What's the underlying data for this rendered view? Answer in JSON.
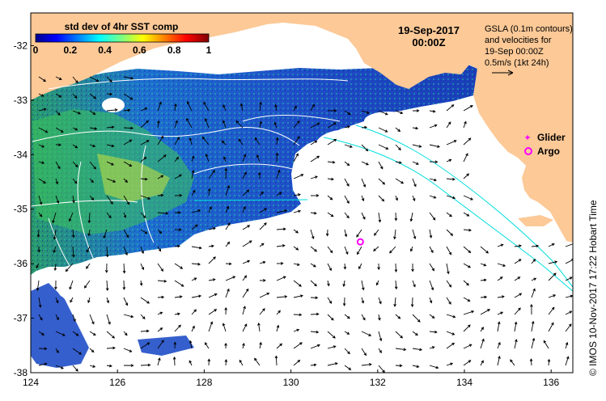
{
  "colorbar": {
    "title": "std dev of 4hr SST comp",
    "ticks": [
      "0",
      "0.2",
      "0.4",
      "0.6",
      "0.8",
      "1"
    ],
    "tick_values": [
      0,
      0.2,
      0.4,
      0.6,
      0.8,
      1
    ]
  },
  "header": {
    "date": "19-Sep-2017",
    "time": "00:00Z"
  },
  "info": {
    "line1": "GSLA (0.1m contours)",
    "line2": "and velocities for",
    "line3": "19-Sep 00:00Z",
    "line4": "0.5m/s (1kt 24h)"
  },
  "legend": {
    "glider": "Glider",
    "argo": "Argo"
  },
  "credit": "© IMOS 10-Nov-2017 17:22 Hobart Time",
  "axes": {
    "lon_ticks": [
      "124",
      "126",
      "128",
      "130",
      "132",
      "134",
      "136"
    ],
    "lon_values": [
      124,
      126,
      128,
      130,
      132,
      134,
      136
    ],
    "lat_ticks": [
      "-32",
      "-33",
      "-34",
      "-35",
      "-36",
      "-37",
      "-38"
    ],
    "lat_values": [
      -32,
      -33,
      -34,
      -35,
      -36,
      -37,
      -38
    ],
    "lon_range": [
      124,
      136.5
    ],
    "lat_range": [
      -38,
      -31.4
    ]
  },
  "argo_float": {
    "lon": 131.6,
    "lat": -35.6
  },
  "colors": {
    "land": "#fcc997",
    "argo": "#ff00ff",
    "glider": "#ff00ff",
    "contour": "#ffffff",
    "cyan_contour": "#00dddd"
  }
}
